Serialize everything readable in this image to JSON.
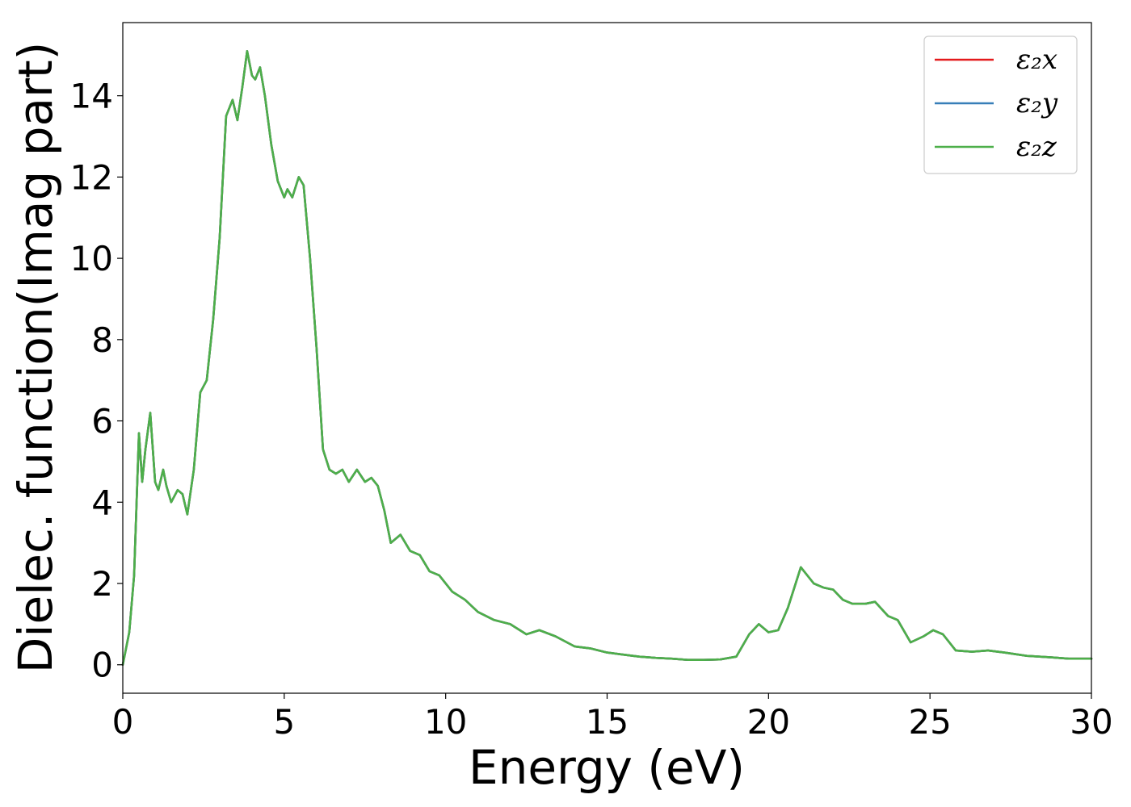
{
  "chart_data": {
    "type": "line",
    "title": "",
    "xlabel": "Energy (eV)",
    "ylabel": "Dielec. function(Imag part)",
    "xlim": [
      0,
      30
    ],
    "ylim": [
      -0.7,
      15.8
    ],
    "xticks": [
      0,
      5,
      10,
      15,
      20,
      25,
      30
    ],
    "yticks": [
      0,
      2,
      4,
      6,
      8,
      10,
      12,
      14
    ],
    "grid": false,
    "legend_position": "top-right",
    "x": [
      0,
      0.2,
      0.35,
      0.5,
      0.6,
      0.7,
      0.85,
      1.0,
      1.1,
      1.25,
      1.35,
      1.5,
      1.7,
      1.85,
      2.0,
      2.2,
      2.4,
      2.6,
      2.8,
      3.0,
      3.2,
      3.4,
      3.55,
      3.7,
      3.85,
      4.0,
      4.1,
      4.25,
      4.4,
      4.6,
      4.8,
      5.0,
      5.1,
      5.25,
      5.45,
      5.6,
      5.8,
      6.0,
      6.2,
      6.4,
      6.6,
      6.8,
      7.0,
      7.25,
      7.5,
      7.7,
      7.9,
      8.1,
      8.3,
      8.6,
      8.9,
      9.2,
      9.5,
      9.8,
      10.2,
      10.6,
      11.0,
      11.5,
      12.0,
      12.5,
      12.9,
      13.4,
      14.0,
      14.5,
      15.0,
      15.5,
      16.0,
      16.5,
      17.0,
      17.5,
      18.0,
      18.5,
      19.0,
      19.4,
      19.7,
      20.0,
      20.3,
      20.6,
      21.0,
      21.4,
      21.7,
      22.0,
      22.3,
      22.6,
      23.0,
      23.3,
      23.7,
      24.0,
      24.4,
      24.8,
      25.1,
      25.4,
      25.8,
      26.3,
      26.8,
      27.3,
      28.0,
      28.8,
      29.3,
      30.0
    ],
    "series": [
      {
        "name": "ε₂x",
        "color": "#e41a1c",
        "values": [
          0,
          0.8,
          2.2,
          5.7,
          4.5,
          5.3,
          6.2,
          4.5,
          4.3,
          4.8,
          4.4,
          4.0,
          4.3,
          4.2,
          3.7,
          4.8,
          6.7,
          7.0,
          8.5,
          10.5,
          13.5,
          13.9,
          13.4,
          14.2,
          15.1,
          14.5,
          14.4,
          14.7,
          14.0,
          12.8,
          11.9,
          11.5,
          11.7,
          11.5,
          12.0,
          11.8,
          10.0,
          7.8,
          5.3,
          4.8,
          4.7,
          4.8,
          4.5,
          4.8,
          4.5,
          4.6,
          4.4,
          3.8,
          3.0,
          3.2,
          2.8,
          2.7,
          2.3,
          2.2,
          1.8,
          1.6,
          1.3,
          1.1,
          1.0,
          0.75,
          0.85,
          0.7,
          0.45,
          0.4,
          0.3,
          0.25,
          0.2,
          0.17,
          0.15,
          0.12,
          0.12,
          0.13,
          0.2,
          0.75,
          1.0,
          0.8,
          0.85,
          1.4,
          2.4,
          2.0,
          1.9,
          1.85,
          1.6,
          1.5,
          1.5,
          1.55,
          1.2,
          1.1,
          0.55,
          0.7,
          0.85,
          0.75,
          0.35,
          0.32,
          0.35,
          0.3,
          0.22,
          0.18,
          0.15,
          0.15
        ]
      },
      {
        "name": "ε₂y",
        "color": "#377eb8",
        "values": [
          0,
          0.8,
          2.2,
          5.7,
          4.5,
          5.3,
          6.2,
          4.5,
          4.3,
          4.8,
          4.4,
          4.0,
          4.3,
          4.2,
          3.7,
          4.8,
          6.7,
          7.0,
          8.5,
          10.5,
          13.5,
          13.9,
          13.4,
          14.2,
          15.1,
          14.5,
          14.4,
          14.7,
          14.0,
          12.8,
          11.9,
          11.5,
          11.7,
          11.5,
          12.0,
          11.8,
          10.0,
          7.8,
          5.3,
          4.8,
          4.7,
          4.8,
          4.5,
          4.8,
          4.5,
          4.6,
          4.4,
          3.8,
          3.0,
          3.2,
          2.8,
          2.7,
          2.3,
          2.2,
          1.8,
          1.6,
          1.3,
          1.1,
          1.0,
          0.75,
          0.85,
          0.7,
          0.45,
          0.4,
          0.3,
          0.25,
          0.2,
          0.17,
          0.15,
          0.12,
          0.12,
          0.13,
          0.2,
          0.75,
          1.0,
          0.8,
          0.85,
          1.4,
          2.4,
          2.0,
          1.9,
          1.85,
          1.6,
          1.5,
          1.5,
          1.55,
          1.2,
          1.1,
          0.55,
          0.7,
          0.85,
          0.75,
          0.35,
          0.32,
          0.35,
          0.3,
          0.22,
          0.18,
          0.15,
          0.15
        ]
      },
      {
        "name": "ε₂z",
        "color": "#4daf4a",
        "values": [
          0,
          0.8,
          2.2,
          5.7,
          4.5,
          5.3,
          6.2,
          4.5,
          4.3,
          4.8,
          4.4,
          4.0,
          4.3,
          4.2,
          3.7,
          4.8,
          6.7,
          7.0,
          8.5,
          10.5,
          13.5,
          13.9,
          13.4,
          14.2,
          15.1,
          14.5,
          14.4,
          14.7,
          14.0,
          12.8,
          11.9,
          11.5,
          11.7,
          11.5,
          12.0,
          11.8,
          10.0,
          7.8,
          5.3,
          4.8,
          4.7,
          4.8,
          4.5,
          4.8,
          4.5,
          4.6,
          4.4,
          3.8,
          3.0,
          3.2,
          2.8,
          2.7,
          2.3,
          2.2,
          1.8,
          1.6,
          1.3,
          1.1,
          1.0,
          0.75,
          0.85,
          0.7,
          0.45,
          0.4,
          0.3,
          0.25,
          0.2,
          0.17,
          0.15,
          0.12,
          0.12,
          0.13,
          0.2,
          0.75,
          1.0,
          0.8,
          0.85,
          1.4,
          2.4,
          2.0,
          1.9,
          1.85,
          1.6,
          1.5,
          1.5,
          1.55,
          1.2,
          1.1,
          0.55,
          0.7,
          0.85,
          0.75,
          0.35,
          0.32,
          0.35,
          0.3,
          0.22,
          0.18,
          0.15,
          0.15
        ]
      }
    ]
  }
}
